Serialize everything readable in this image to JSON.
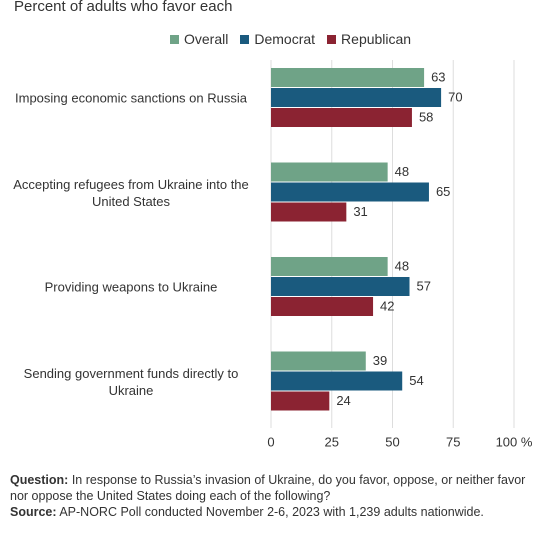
{
  "chart_data": {
    "type": "hbar",
    "subtitle": "Percent of adults who favor each",
    "categories": [
      "Imposing economic sanctions on Russia",
      "Accepting refugees from Ukraine into the United States",
      "Providing weapons to Ukraine",
      "Sending government funds directly to Ukraine"
    ],
    "series": [
      {
        "name": "Overall",
        "color": "#6fa387",
        "values": [
          63,
          48,
          48,
          39
        ]
      },
      {
        "name": "Democrat",
        "color": "#1a5a7e",
        "values": [
          70,
          65,
          57,
          54
        ]
      },
      {
        "name": "Republican",
        "color": "#8b2332",
        "values": [
          58,
          31,
          42,
          24
        ]
      }
    ],
    "xlim": [
      0,
      100
    ],
    "xticks": [
      0,
      25,
      50,
      75,
      {
        "value": 100,
        "label": "100 %"
      }
    ],
    "grid": true,
    "legend": "top",
    "note_label": "Question:",
    "note": "In response to Russia’s invasion of Ukraine, do you favor, oppose, or neither favor nor oppose the United States doing each of the following?",
    "source_label": "Source:",
    "source": "AP-NORC Poll conducted November 2-6, 2023 with 1,239 adults nationwide."
  }
}
